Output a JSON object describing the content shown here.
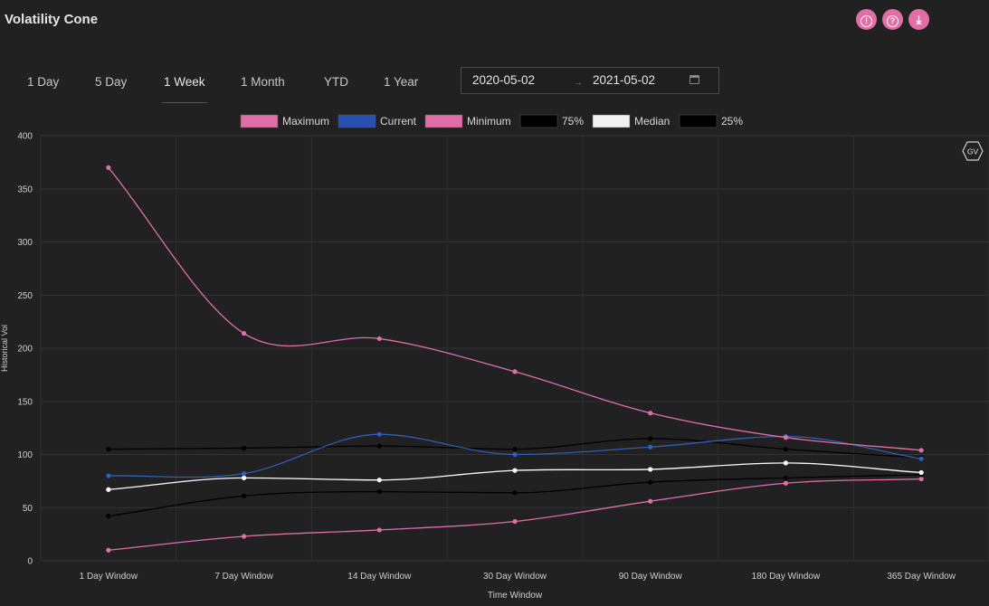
{
  "header": {
    "title": "Volatility Cone",
    "buttons": [
      {
        "name": "info-button",
        "icon": "alert-circle-icon",
        "glyph": "!"
      },
      {
        "name": "help-button",
        "icon": "help-circle-icon",
        "glyph": "?"
      },
      {
        "name": "download-button",
        "icon": "download-icon",
        "glyph": "⤓"
      }
    ],
    "accent_color": "#e06fa6"
  },
  "period_tabs": [
    {
      "label": "1 Day",
      "active": false
    },
    {
      "label": "5 Day",
      "active": false
    },
    {
      "label": "1 Week",
      "active": true
    },
    {
      "label": "1 Month",
      "active": false
    },
    {
      "label": "YTD",
      "active": false
    },
    {
      "label": "1 Year",
      "active": false
    }
  ],
  "date_range": {
    "start": "2020-05-02",
    "separator": "→",
    "end": "2021-05-02",
    "icon": "calendar-icon"
  },
  "watermark": "GV",
  "chart_data": {
    "type": "line",
    "title": "",
    "xlabel": "Time Window",
    "ylabel": "Historical Vol",
    "categories": [
      "1 Day Window",
      "7 Day Window",
      "14 Day Window",
      "30 Day Window",
      "90 Day Window",
      "180 Day Window",
      "365 Day Window"
    ],
    "ylim": [
      0,
      400
    ],
    "yticks": [
      0,
      50,
      100,
      150,
      200,
      250,
      300,
      350,
      400
    ],
    "grid": true,
    "legend_position": "top-center",
    "series": [
      {
        "name": "Maximum",
        "color": "#e06fa6",
        "legend_color": "#e06fa6",
        "values": [
          370,
          214,
          209,
          178,
          139,
          116,
          104
        ]
      },
      {
        "name": "Current",
        "color": "#2f5fb8",
        "legend_color": "#2750b0",
        "values": [
          80,
          82,
          119,
          100,
          107,
          117,
          96
        ]
      },
      {
        "name": "Minimum",
        "color": "#e06fa6",
        "legend_color": "#e06fa6",
        "values": [
          10,
          23,
          29,
          37,
          56,
          73,
          77
        ]
      },
      {
        "name": "75%",
        "color": "#000000",
        "legend_color": "#000000",
        "values": [
          105,
          106,
          108,
          105,
          115,
          105,
          97
        ]
      },
      {
        "name": "Median",
        "color": "#ffffff",
        "legend_color": "#f2f2f2",
        "values": [
          67,
          78,
          76,
          85,
          86,
          92,
          83
        ]
      },
      {
        "name": "25%",
        "color": "#000000",
        "legend_color": "#000000",
        "values": [
          42,
          61,
          65,
          64,
          74,
          78,
          81
        ]
      }
    ]
  }
}
